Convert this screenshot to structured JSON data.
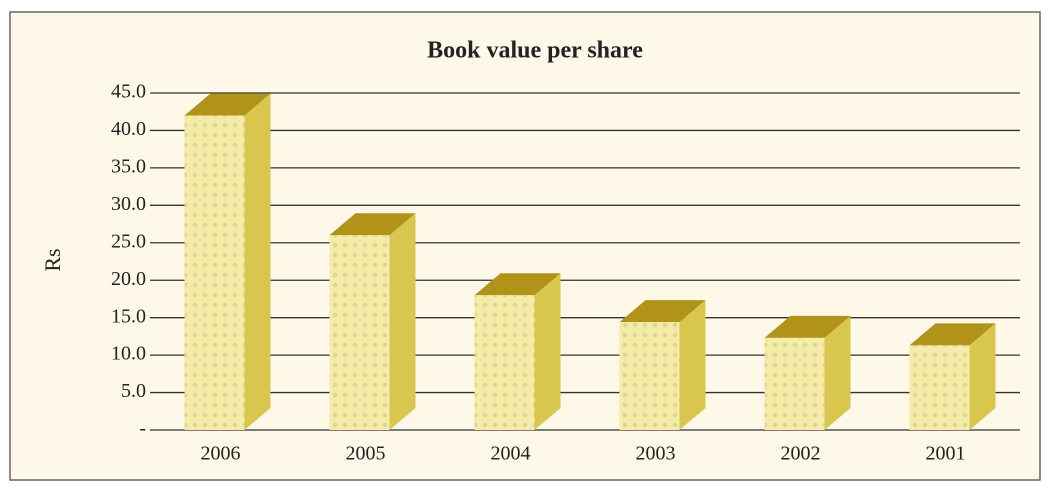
{
  "chart_data": {
    "type": "bar3d",
    "title": "Book value per share",
    "y_label": "Rs",
    "categories": [
      "2006",
      "2005",
      "2004",
      "2003",
      "2002",
      "2001"
    ],
    "values": [
      42,
      26,
      18,
      14.4,
      12.3,
      11.3
    ],
    "colors": {
      "front": "#f4eca6",
      "side": "#d9c64c",
      "top": "#b2931a"
    },
    "ylim": [
      0,
      45
    ],
    "yticks": [
      {
        "value": 0,
        "label": "-"
      },
      {
        "value": 5,
        "label": "5.0"
      },
      {
        "value": 10,
        "label": "10.0"
      },
      {
        "value": 15,
        "label": "15.0"
      },
      {
        "value": 20,
        "label": "20.0"
      },
      {
        "value": 25,
        "label": "25.0"
      },
      {
        "value": 30,
        "label": "30.0"
      },
      {
        "value": 35,
        "label": "35.0"
      },
      {
        "value": 40,
        "label": "40.0"
      },
      {
        "value": 45,
        "label": "45.0"
      }
    ],
    "grid": true
  }
}
